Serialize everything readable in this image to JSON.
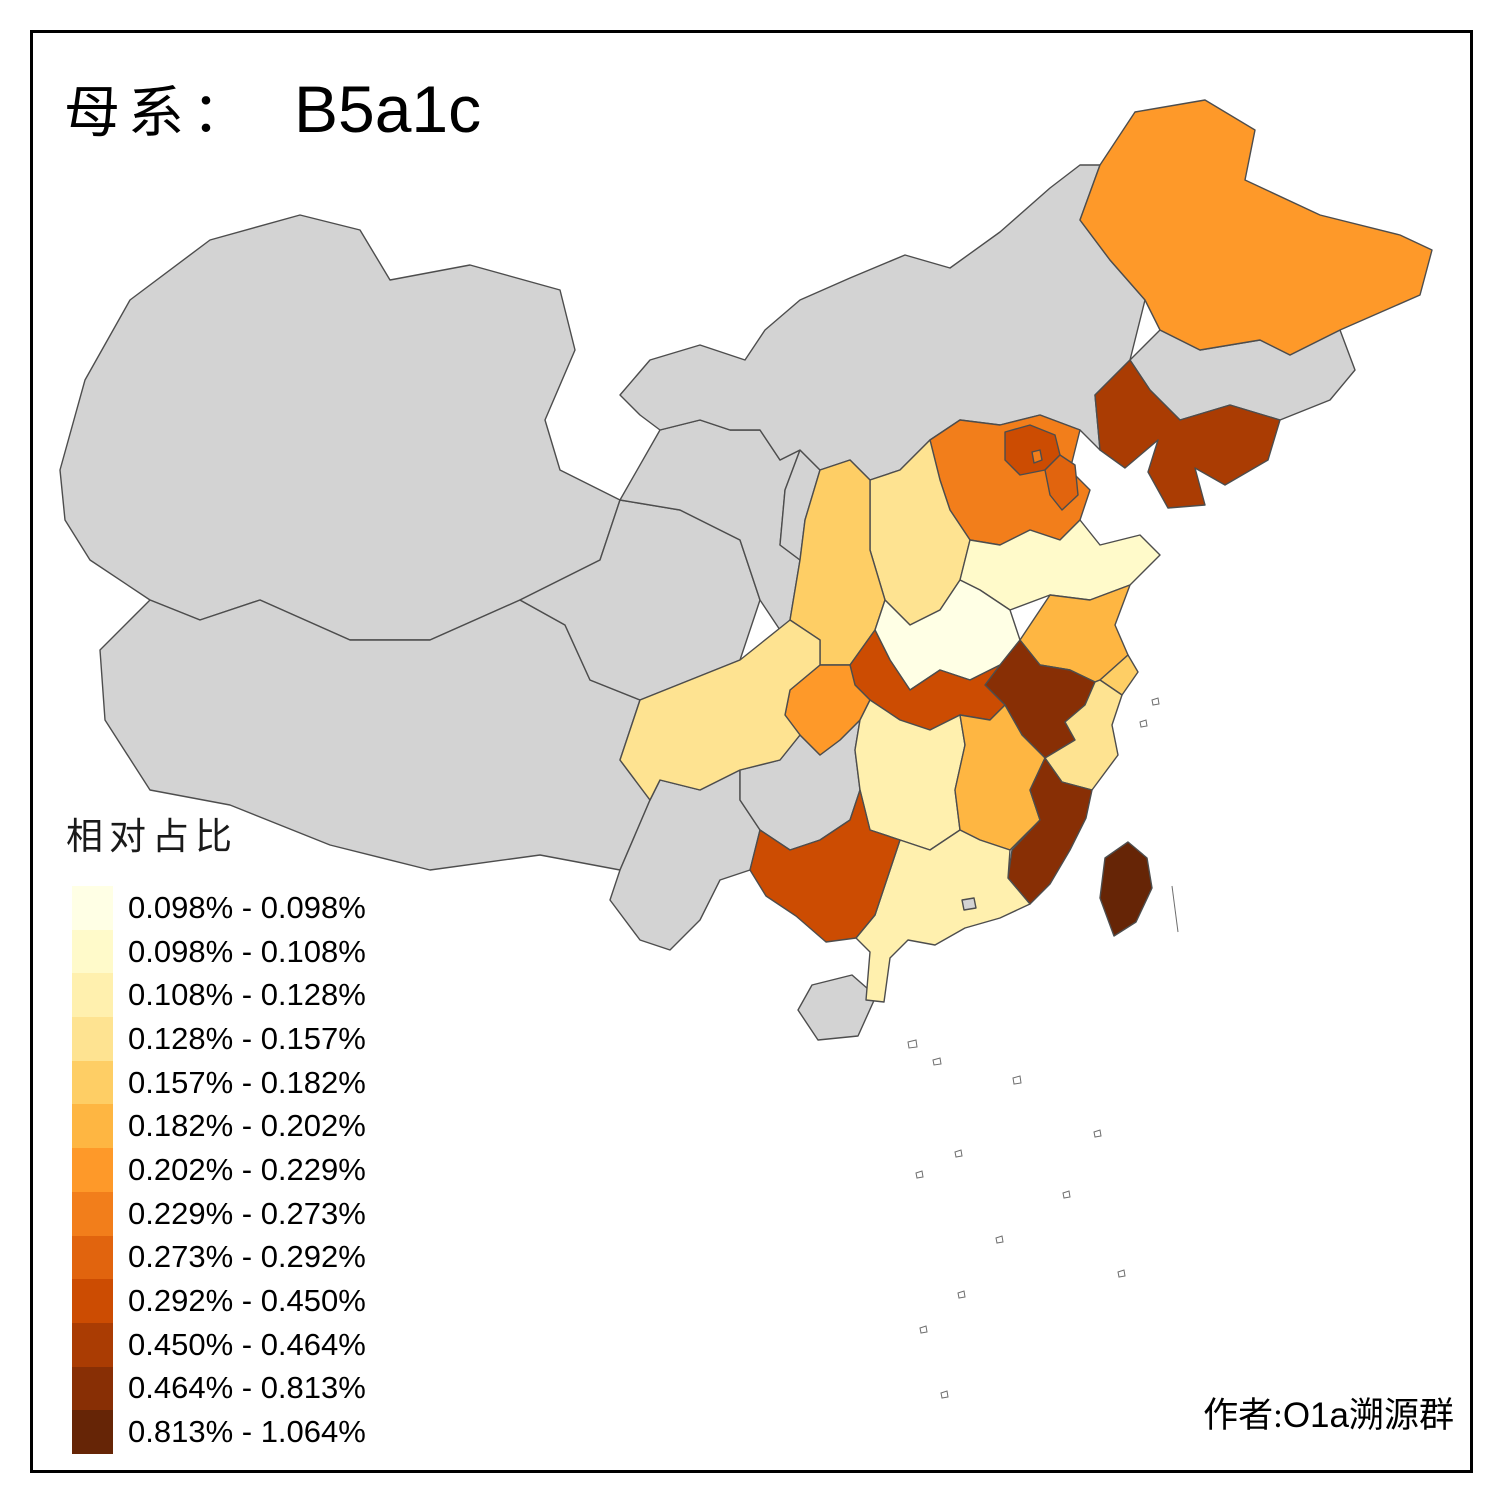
{
  "title": {
    "prefix": "母系：",
    "haplogroup": "B5a1c"
  },
  "legend": {
    "title": "相对占比",
    "classes": [
      {
        "range": "0.098% - 0.098%",
        "color": "#FFFFE5"
      },
      {
        "range": "0.098% - 0.108%",
        "color": "#FFFACA"
      },
      {
        "range": "0.108% - 0.128%",
        "color": "#FFF0AE"
      },
      {
        "range": "0.128% - 0.157%",
        "color": "#FEE391"
      },
      {
        "range": "0.157% - 0.182%",
        "color": "#FECE65"
      },
      {
        "range": "0.182% - 0.202%",
        "color": "#FEB642"
      },
      {
        "range": "0.202% - 0.229%",
        "color": "#FE9929"
      },
      {
        "range": "0.229% - 0.273%",
        "color": "#F27E1B"
      },
      {
        "range": "0.273% - 0.292%",
        "color": "#E1640E"
      },
      {
        "range": "0.292% - 0.450%",
        "color": "#CC4C02"
      },
      {
        "range": "0.450% - 0.464%",
        "color": "#AA3C03"
      },
      {
        "range": "0.464% - 0.813%",
        "color": "#882F05"
      },
      {
        "range": "0.813% - 1.064%",
        "color": "#662506"
      }
    ]
  },
  "attribution": {
    "prefix": "作者:",
    "latin": "O1a",
    "suffix": "溯源群"
  },
  "map": {
    "no_data_color": "#D3D3D3",
    "border_color": "#4D4D4D",
    "sea_color": "#FFFFFF",
    "provinces": {
      "heilongjiang": {
        "class_index": 7
      },
      "jilin": {
        "class_index": null
      },
      "liaoning": {
        "class_index": 11
      },
      "neimenggu": {
        "class_index": null
      },
      "beijing": {
        "class_index": 10
      },
      "tianjin": {
        "class_index": 9
      },
      "hebei": {
        "class_index": 8
      },
      "shanxi": {
        "class_index": 4
      },
      "shandong": {
        "class_index": 2
      },
      "henan": {
        "class_index": 1
      },
      "shaanxi": {
        "class_index": 5
      },
      "gansu": {
        "class_index": null
      },
      "ningxia": {
        "class_index": null
      },
      "qinghai": {
        "class_index": null
      },
      "xinjiang": {
        "class_index": null
      },
      "xizang": {
        "class_index": null
      },
      "sichuan": {
        "class_index": 4
      },
      "chongqing": {
        "class_index": 7
      },
      "hubei": {
        "class_index": 10
      },
      "anhui": {
        "class_index": 12
      },
      "jiangsu": {
        "class_index": 6
      },
      "shanghai": {
        "class_index": 5
      },
      "zhejiang": {
        "class_index": 4
      },
      "jiangxi": {
        "class_index": 6
      },
      "hunan": {
        "class_index": 3
      },
      "guizhou": {
        "class_index": null
      },
      "yunnan": {
        "class_index": null
      },
      "fujian": {
        "class_index": 12
      },
      "taiwan": {
        "class_index": 13
      },
      "guangdong": {
        "class_index": 3
      },
      "guangxi": {
        "class_index": 10
      },
      "hainan": {
        "class_index": null
      },
      "hongkong": {
        "class_index": null
      }
    }
  }
}
